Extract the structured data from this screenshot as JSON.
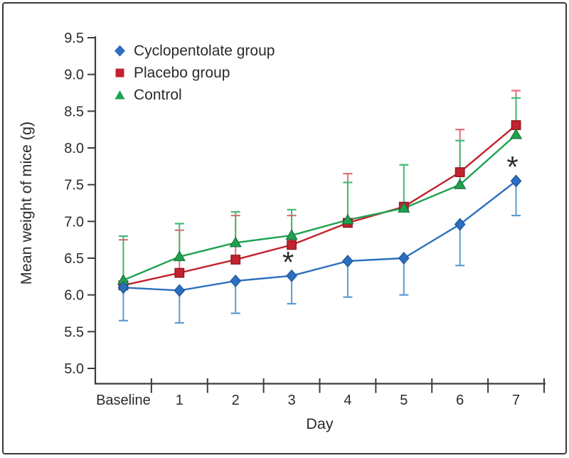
{
  "figure": {
    "background": "#FFFFFF",
    "border_color": "#3A3A3A"
  },
  "chart_data": {
    "type": "line",
    "title": "",
    "xlabel": "Day",
    "ylabel": "Mean weight of mice (g)",
    "categories": [
      "Baseline",
      "1",
      "2",
      "3",
      "4",
      "5",
      "6",
      "7"
    ],
    "ylim": [
      5.0,
      9.5
    ],
    "y_tick_labels": [
      "5.0",
      "5.5",
      "6.0",
      "6.5",
      "7.0",
      "7.5",
      "8.0",
      "8.5",
      "9.0",
      "9.5"
    ],
    "grid": false,
    "legend_position": "top-left",
    "axis_color": "#3C3C3C",
    "text_color": "#2B2B2B",
    "series": [
      {
        "name": "Cyclopentolate group",
        "marker": "diamond",
        "color": "#2C6FBE",
        "edge_color": "#1A569E",
        "error_color": "#5B9BD5",
        "error_direction": "down",
        "values": [
          6.1,
          6.06,
          6.19,
          6.26,
          6.46,
          6.5,
          6.96,
          7.55
        ],
        "error_tips": [
          5.65,
          5.62,
          5.75,
          5.88,
          5.97,
          6.0,
          6.4,
          7.08
        ]
      },
      {
        "name": "Placebo group",
        "marker": "square",
        "color": "#C2232E",
        "edge_color": "#8E151F",
        "error_color": "#E26E74",
        "error_direction": "up",
        "values": [
          6.13,
          6.3,
          6.48,
          6.68,
          6.98,
          7.2,
          7.67,
          8.31
        ],
        "error_tips": [
          6.75,
          6.88,
          7.08,
          7.08,
          7.65,
          null,
          8.25,
          8.78
        ]
      },
      {
        "name": "Control",
        "marker": "triangle",
        "color": "#1FA24F",
        "edge_color": "#147A3B",
        "error_color": "#41BA74",
        "error_direction": "up",
        "values": [
          6.2,
          6.52,
          6.71,
          6.81,
          7.02,
          7.18,
          7.5,
          8.18
        ],
        "error_tips": [
          6.8,
          6.97,
          7.13,
          7.16,
          7.53,
          7.77,
          8.1,
          8.68
        ]
      }
    ],
    "annotations": [
      {
        "text": "*",
        "category_index": 3,
        "value": 6.45
      },
      {
        "text": "*",
        "category_index": 7,
        "value": 7.75
      }
    ]
  }
}
